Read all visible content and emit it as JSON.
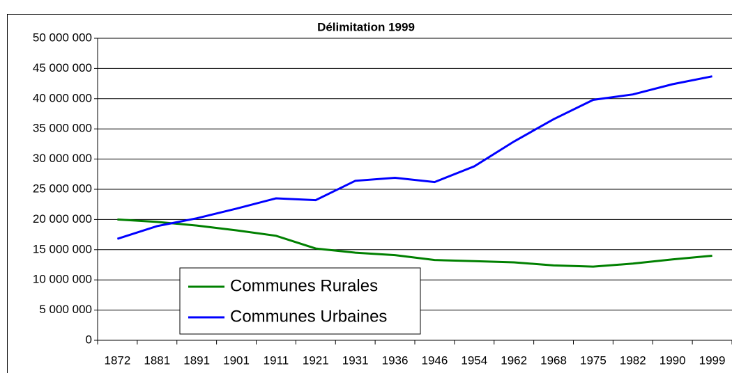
{
  "chart_data": {
    "type": "line",
    "title": "Délimitation 1999",
    "categories": [
      "1872",
      "1881",
      "1891",
      "1901",
      "1911",
      "1921",
      "1931",
      "1936",
      "1946",
      "1954",
      "1962",
      "1968",
      "1975",
      "1982",
      "1990",
      "1999"
    ],
    "series": [
      {
        "name": "Communes Rurales",
        "color": "#008000",
        "values": [
          20000000.0,
          19600000.0,
          19000000.0,
          18200000.0,
          17300000.0,
          15200000.0,
          14500000.0,
          14100000.0,
          13300000.0,
          13100000.0,
          12900000.0,
          12400000.0,
          12200000.0,
          12700000.0,
          13400000.0,
          14000000.0
        ]
      },
      {
        "name": "Communes Urbaines",
        "color": "#0000ff",
        "values": [
          16800000.0,
          18900000.0,
          20200000.0,
          21800000.0,
          23500000.0,
          23200000.0,
          26400000.0,
          26900000.0,
          26200000.0,
          28800000.0,
          32900000.0,
          36600000.0,
          39800000.0,
          40700000.0,
          42400000.0,
          43700000.0
        ]
      }
    ],
    "ylim": [
      0,
      50000000
    ],
    "yticks": [
      0,
      {
        "value": 5000000,
        "label": "5 000 000"
      },
      {
        "value": 10000000,
        "label": "10 000 000"
      },
      {
        "value": 15000000,
        "label": "15 000 000"
      },
      {
        "value": 20000000,
        "label": "20 000 000"
      },
      {
        "value": 25000000,
        "label": "25 000 000"
      },
      {
        "value": 30000000,
        "label": "30 000 000"
      },
      {
        "value": 35000000,
        "label": "35 000 000"
      },
      {
        "value": 40000000,
        "label": "40 000 000"
      },
      {
        "value": 45000000,
        "label": "45 000 000"
      },
      {
        "value": 50000000,
        "label": "50 000 000"
      }
    ],
    "grid": true,
    "legend": "lower-left"
  }
}
